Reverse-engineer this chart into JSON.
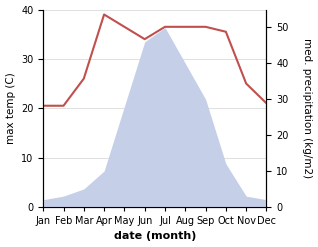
{
  "months": [
    "Jan",
    "Feb",
    "Mar",
    "Apr",
    "May",
    "Jun",
    "Jul",
    "Aug",
    "Sep",
    "Oct",
    "Nov",
    "Dec"
  ],
  "month_indices": [
    1,
    2,
    3,
    4,
    5,
    6,
    7,
    8,
    9,
    10,
    11,
    12
  ],
  "temp": [
    20.5,
    20.5,
    26.0,
    39.0,
    36.5,
    34.0,
    36.5,
    36.5,
    36.5,
    35.5,
    25.0,
    21.0
  ],
  "precip": [
    2,
    3,
    5,
    10,
    28,
    46,
    50,
    40,
    30,
    12,
    3,
    2
  ],
  "temp_color": "#c0504d",
  "precip_fill": "#c5cfe8",
  "temp_ylim": [
    0,
    40
  ],
  "precip_ylim": [
    0,
    55
  ],
  "temp_yticks": [
    0,
    10,
    20,
    30,
    40
  ],
  "precip_yticks": [
    0,
    10,
    20,
    30,
    40,
    50
  ],
  "xlabel": "date (month)",
  "ylabel_left": "max temp (C)",
  "ylabel_right": "med. precipitation (kg/m2)",
  "xlabel_fontsize": 8,
  "ylabel_fontsize": 7.5,
  "tick_fontsize": 7
}
